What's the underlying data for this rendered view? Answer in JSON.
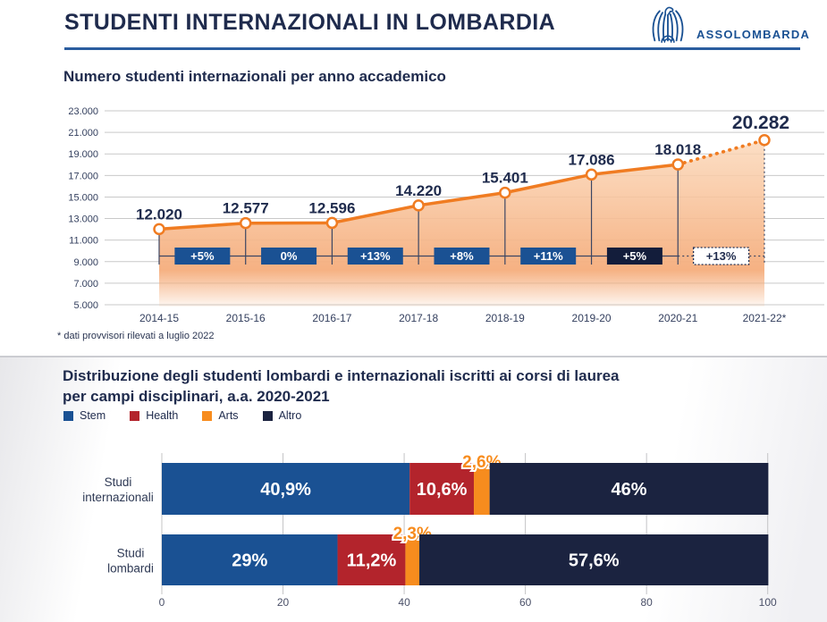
{
  "header": {
    "title": "STUDENTI INTERNAZIONALI IN LOMBARDIA",
    "logo_text": "ASSOLOMBARDA"
  },
  "colors": {
    "navy_text": "#1f2b4d",
    "accent_blue": "#1a5193",
    "line_orange": "#f07c22",
    "area_orange": "#f5ad7c",
    "badge_blue": "#1a5193",
    "badge_dark": "#131d3b",
    "grid_gray": "#c9c9c9",
    "health_red": "#b3242c",
    "arts_orange": "#f78c1e",
    "altro_navy": "#1b2340"
  },
  "chart_data": [
    {
      "type": "line",
      "title": "Numero studenti internazionali per anno accademico",
      "categories": [
        "2014-15",
        "2015-16",
        "2016-17",
        "2017-18",
        "2018-19",
        "2019-20",
        "2020-21",
        "2021-22*"
      ],
      "values": [
        12020,
        12577,
        12596,
        14220,
        15401,
        17086,
        18018,
        20282
      ],
      "value_labels": [
        "12.020",
        "12.577",
        "12.596",
        "14.220",
        "15.401",
        "17.086",
        "18.018",
        "20.282"
      ],
      "pct_badges": [
        {
          "label": "+5%",
          "style": "blue"
        },
        {
          "label": "0%",
          "style": "blue"
        },
        {
          "label": "+13%",
          "style": "blue"
        },
        {
          "label": "+8%",
          "style": "blue"
        },
        {
          "label": "+11%",
          "style": "blue"
        },
        {
          "label": "+5%",
          "style": "dark"
        },
        {
          "label": "+13%",
          "style": "outline"
        }
      ],
      "ylim": [
        5000,
        23000
      ],
      "ytick_step": 2000,
      "ytick_labels": [
        "5.000",
        "7.000",
        "9.000",
        "11.000",
        "13.000",
        "15.000",
        "17.000",
        "19.000",
        "21.000",
        "23.000"
      ],
      "grid": true,
      "last_segment_dotted": true,
      "footnote": "* dati provvisori rilevati a luglio 2022"
    },
    {
      "type": "bar",
      "subtype": "stacked-horizontal",
      "title_lines": [
        "Distribuzione degli studenti lombardi e internazionali iscritti ai corsi di laurea",
        "per campi disciplinari, a.a. 2020-2021"
      ],
      "legend": [
        {
          "name": "Stem",
          "color": "#1a5193"
        },
        {
          "name": "Health",
          "color": "#b3242c"
        },
        {
          "name": "Arts",
          "color": "#f78c1e"
        },
        {
          "name": "Altro",
          "color": "#1b2340"
        }
      ],
      "rows": [
        {
          "label_lines": [
            "Studi",
            "internazionali"
          ],
          "values": [
            40.9,
            10.6,
            2.6,
            46
          ],
          "display_labels": [
            "40,9%",
            "10,6%",
            "2,6%",
            "46%"
          ]
        },
        {
          "label_lines": [
            "Studi",
            "lombardi"
          ],
          "values": [
            29,
            11.2,
            2.3,
            57.6
          ],
          "display_labels": [
            "29%",
            "11,2%",
            "2,3%",
            "57,6%"
          ]
        }
      ],
      "xlim": [
        0,
        100
      ],
      "xticks": [
        "0",
        "20",
        "40",
        "60",
        "80",
        "100"
      ],
      "legend_position": "top-left",
      "grid": true
    }
  ]
}
